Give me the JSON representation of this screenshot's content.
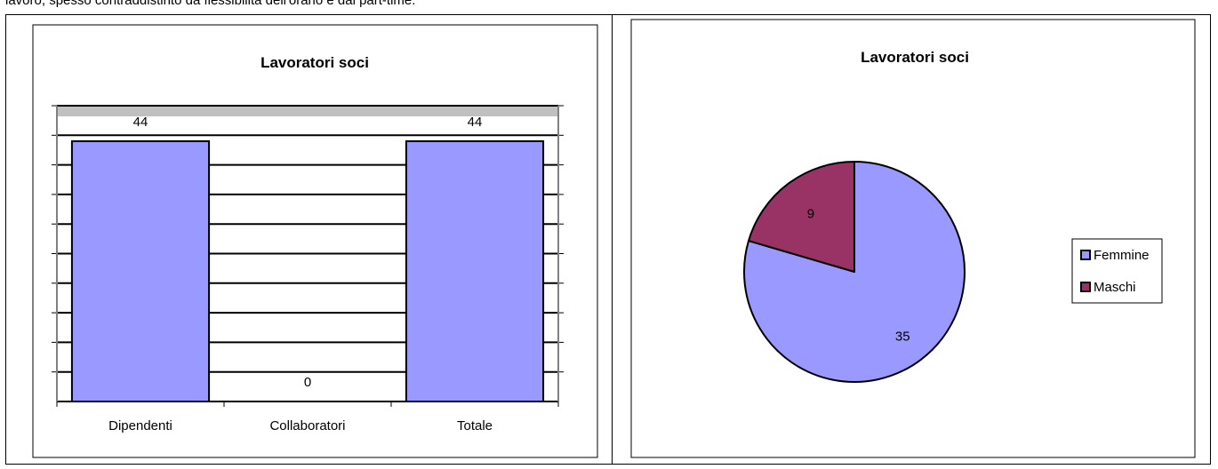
{
  "intro_text": "lavoro, spesso contraddistinto da flessibilità dell'orario e dal part-time.",
  "chart_data": [
    {
      "type": "bar",
      "title": "Lavoratori soci",
      "categories": [
        "Dipendenti",
        "Collaboratori",
        "Totale"
      ],
      "values": [
        44,
        0,
        44
      ],
      "ylim": [
        0,
        50
      ],
      "grid": true,
      "legend": "none",
      "colors": {
        "bar": "#9999ff",
        "plot_bg": "#c0c0c0",
        "gridline": "#000000"
      }
    },
    {
      "type": "pie",
      "title": "Lavoratori soci",
      "labels": [
        "Femmine",
        "Maschi"
      ],
      "values": [
        35,
        9
      ],
      "legend": "right",
      "colors": [
        "#9999ff",
        "#993366"
      ]
    }
  ]
}
